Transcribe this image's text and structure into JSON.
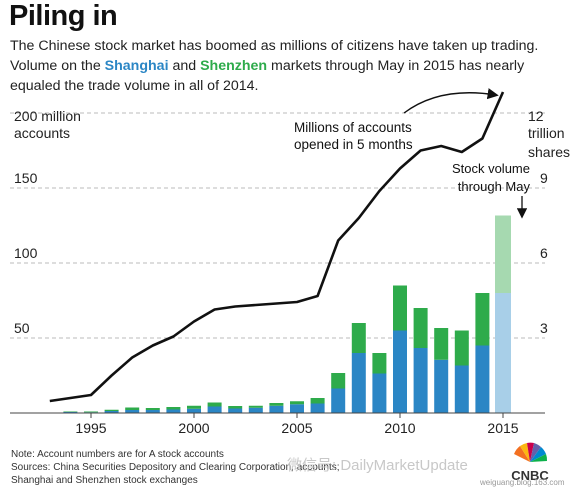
{
  "title": "Piling in",
  "subtitle": {
    "part1": "The Chinese stock market has boomed as millions of citizens have taken up trading. Volume on the ",
    "shanghai": "Shanghai",
    "part2": " and ",
    "shenzhen": "Shenzhen",
    "part3": " markets through May in 2015 has nearly equaled the trade volume in all of 2014."
  },
  "colors": {
    "shanghai": "#2b86c5",
    "shenzhen": "#2eab4b",
    "shanghai_partial": "#a8cfe8",
    "shenzhen_partial": "#a6d9b0",
    "line": "#111111",
    "grid": "#bbbbbb"
  },
  "annotations": {
    "left_axis_unit_line1": "200 million",
    "left_axis_unit_line2": "accounts",
    "right_axis_unit_line1": "12",
    "right_axis_unit_line2": "trillion",
    "right_axis_unit_line3": "shares",
    "accounts_note_line1": "Millions of accounts",
    "accounts_note_line2": "opened in 5 months",
    "volume_note_line1": "Stock volume",
    "volume_note_line2": "through May"
  },
  "footer": {
    "note": "Note: Account numbers are for A stock accounts",
    "sources": "Sources: China Securities Depository and Clearing Corporation, accounts;",
    "sources2": "Shanghai and Shenzhen stock exchanges",
    "watermark": "微信号: DailyMarketUpdate",
    "logo_text": "CNBC",
    "logo_url": "weiguang.blog.163.com"
  },
  "chart_data": {
    "type": "bar",
    "x_ticks": [
      1995,
      2000,
      2005,
      2010,
      2015
    ],
    "left_axis": {
      "ticks": [
        50,
        100,
        150
      ],
      "label": "200 million accounts",
      "ylim": [
        0,
        200
      ]
    },
    "right_axis": {
      "ticks": [
        3,
        6,
        9
      ],
      "label": "12 trillion shares",
      "ylim": [
        0,
        12
      ]
    },
    "bars": {
      "years": [
        1994,
        1995,
        1996,
        1997,
        1998,
        1999,
        2000,
        2001,
        2002,
        2003,
        2004,
        2005,
        2006,
        2007,
        2008,
        2009,
        2010,
        2011,
        2012,
        2013,
        2014,
        2015
      ],
      "series": [
        {
          "name": "Shanghai",
          "values": [
            0.04,
            0.03,
            0.08,
            0.12,
            0.12,
            0.14,
            0.17,
            0.26,
            0.18,
            0.21,
            0.29,
            0.35,
            0.38,
            0.98,
            2.4,
            1.58,
            3.3,
            2.6,
            2.13,
            1.9,
            2.7,
            4.8
          ]
        },
        {
          "name": "Shenzhen",
          "values": [
            0.02,
            0.03,
            0.05,
            0.1,
            0.08,
            0.1,
            0.12,
            0.16,
            0.1,
            0.08,
            0.11,
            0.12,
            0.22,
            0.62,
            1.2,
            0.82,
            1.8,
            1.6,
            1.27,
            1.4,
            2.1,
            3.1
          ]
        }
      ],
      "partial_year": 2015
    },
    "line": {
      "name": "Accounts",
      "x": [
        1993,
        1994,
        1995,
        1996,
        1997,
        1998,
        1999,
        2000,
        2001,
        2002,
        2003,
        2004,
        2005,
        2006,
        2007,
        2008,
        2009,
        2010,
        2011,
        2012,
        2013,
        2014,
        2015
      ],
      "y": [
        8,
        10,
        12,
        25,
        37,
        45,
        51,
        61,
        69,
        71,
        72,
        73,
        74,
        78,
        115,
        130,
        148,
        163,
        175,
        178,
        174,
        183,
        214
      ]
    }
  }
}
